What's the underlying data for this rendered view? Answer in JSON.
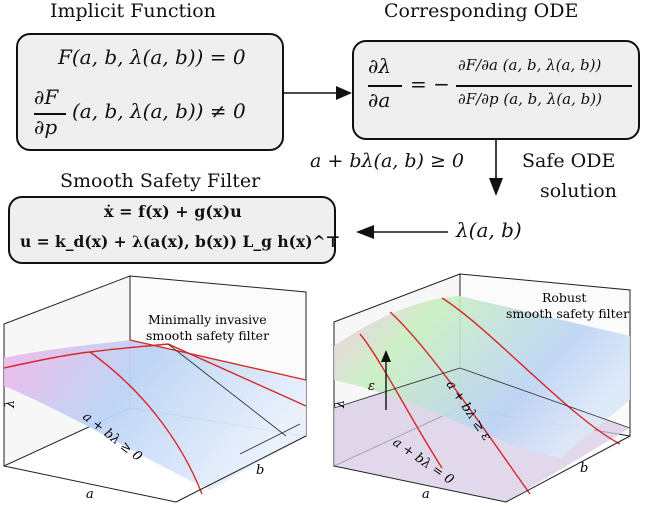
{
  "titles": {
    "implicit": "Implicit Function",
    "ode": "Corresponding ODE",
    "filter": "Smooth Safety Filter"
  },
  "implicit_box": {
    "line1": "F(a, b, λ(a, b)) = 0",
    "line2_num": "∂F",
    "line2_den": "∂p",
    "line2_rest": "(a, b, λ(a, b)) ≠ 0"
  },
  "ode_box": {
    "lhs_num": "∂λ",
    "lhs_den": "∂a",
    "eq_sign": "= −",
    "rhs_num": "∂F/∂a (a, b, λ(a, b))",
    "rhs_den": "∂F/∂p (a, b, λ(a, b))"
  },
  "middle": {
    "condition": "a + bλ(a, b) ≥ 0",
    "safe_ode_line1": "Safe ODE",
    "safe_ode_line2": "solution",
    "lambda_ab": "λ(a, b)"
  },
  "filter_box": {
    "line1": "ẋ = f(x) + g(x)u",
    "line2": "u = k_d(x) + λ(a(x), b(x)) L_g h(x)^⊤"
  },
  "plot_left": {
    "annotation_line1": "Minimally invasive",
    "annotation_line2": "smooth safety filter",
    "region": "a + bλ ≥ 0",
    "axis_a": "a",
    "axis_b": "b",
    "axis_lambda": "λ"
  },
  "plot_right": {
    "annotation_line1": "Robust",
    "annotation_line2": "smooth safety filter",
    "region": "a + bλ ≥ ε",
    "boundary": "a + bλ = 0",
    "epsilon": "ε",
    "axis_a": "a",
    "axis_b": "b",
    "axis_lambda": "λ"
  },
  "colors": {
    "red_curve": "#d62728",
    "box_fill": "#efefef",
    "surface_blue": "#bcd3f5",
    "surface_pink": "#f2b8ea",
    "surface_green": "#c8efc0",
    "surface_lavender": "#d8cbe6"
  }
}
